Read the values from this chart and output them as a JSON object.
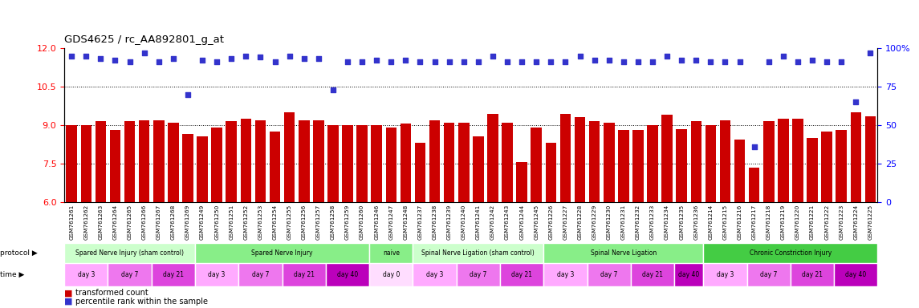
{
  "title": "GDS4625 / rc_AA892801_g_at",
  "ylim": [
    6,
    12
  ],
  "yticks": [
    6,
    7.5,
    9,
    10.5,
    12
  ],
  "right_ylim": [
    0,
    100
  ],
  "right_yticks": [
    0,
    25,
    50,
    75,
    100
  ],
  "bar_color": "#cc0000",
  "dot_color": "#3333cc",
  "gsm_labels": [
    "GSM761261",
    "GSM761262",
    "GSM761263",
    "GSM761264",
    "GSM761265",
    "GSM761266",
    "GSM761267",
    "GSM761268",
    "GSM761269",
    "GSM761249",
    "GSM761250",
    "GSM761251",
    "GSM761252",
    "GSM761253",
    "GSM761254",
    "GSM761255",
    "GSM761256",
    "GSM761257",
    "GSM761258",
    "GSM761259",
    "GSM761260",
    "GSM761246",
    "GSM761247",
    "GSM761248",
    "GSM761237",
    "GSM761238",
    "GSM761239",
    "GSM761240",
    "GSM761241",
    "GSM761242",
    "GSM761243",
    "GSM761244",
    "GSM761245",
    "GSM761226",
    "GSM761227",
    "GSM761228",
    "GSM761229",
    "GSM761230",
    "GSM761231",
    "GSM761232",
    "GSM761233",
    "GSM761234",
    "GSM761235",
    "GSM761236",
    "GSM761214",
    "GSM761215",
    "GSM761216",
    "GSM761217",
    "GSM761218",
    "GSM761219",
    "GSM761220",
    "GSM761221",
    "GSM761222",
    "GSM761223",
    "GSM761224",
    "GSM761225"
  ],
  "bar_values": [
    9.0,
    9.0,
    9.15,
    8.8,
    9.15,
    9.2,
    9.2,
    9.1,
    8.65,
    8.55,
    8.9,
    9.15,
    9.25,
    9.2,
    8.75,
    9.5,
    9.2,
    9.2,
    9.0,
    9.0,
    9.0,
    9.0,
    8.9,
    9.05,
    8.3,
    9.2,
    9.1,
    9.1,
    8.55,
    9.45,
    9.1,
    7.55,
    8.9,
    8.3,
    9.45,
    9.3,
    9.15,
    9.1,
    8.8,
    8.8,
    9.0,
    9.4,
    8.85,
    9.15,
    9.0,
    9.2,
    8.45,
    7.35,
    9.15,
    9.25,
    9.25,
    8.5,
    8.75,
    8.8,
    9.5,
    9.35
  ],
  "dot_values": [
    95,
    95,
    93,
    92,
    91,
    97,
    91,
    93,
    70,
    92,
    91,
    93,
    95,
    94,
    91,
    95,
    93,
    93,
    73,
    91,
    91,
    92,
    91,
    92,
    91,
    91,
    91,
    91,
    91,
    95,
    91,
    91,
    91,
    91,
    91,
    95,
    92,
    92,
    91,
    91,
    91,
    95,
    92,
    92,
    91,
    91,
    91,
    36,
    91,
    95,
    91,
    92,
    91,
    91,
    65,
    97
  ],
  "protocols": [
    {
      "label": "Spared Nerve Injury (sham control)",
      "start": 0,
      "end": 9,
      "color": "#ccffcc"
    },
    {
      "label": "Spared Nerve Injury",
      "start": 9,
      "end": 21,
      "color": "#88ee88"
    },
    {
      "label": "naive",
      "start": 21,
      "end": 24,
      "color": "#88ee88"
    },
    {
      "label": "Spinal Nerve Ligation (sham control)",
      "start": 24,
      "end": 33,
      "color": "#ccffcc"
    },
    {
      "label": "Spinal Nerve Ligation",
      "start": 33,
      "end": 44,
      "color": "#88ee88"
    },
    {
      "label": "Chronic Constriction Injury",
      "start": 44,
      "end": 56,
      "color": "#44cc44"
    }
  ],
  "times": [
    {
      "label": "day 3",
      "start": 0,
      "end": 3,
      "color": "#ffaaff"
    },
    {
      "label": "day 7",
      "start": 3,
      "end": 6,
      "color": "#ee77ee"
    },
    {
      "label": "day 21",
      "start": 6,
      "end": 9,
      "color": "#dd44dd"
    },
    {
      "label": "day 3",
      "start": 9,
      "end": 12,
      "color": "#ffaaff"
    },
    {
      "label": "day 7",
      "start": 12,
      "end": 15,
      "color": "#ee77ee"
    },
    {
      "label": "day 21",
      "start": 15,
      "end": 18,
      "color": "#dd44dd"
    },
    {
      "label": "day 40",
      "start": 18,
      "end": 21,
      "color": "#bb00bb"
    },
    {
      "label": "day 0",
      "start": 21,
      "end": 24,
      "color": "#ffddff"
    },
    {
      "label": "day 3",
      "start": 24,
      "end": 27,
      "color": "#ffaaff"
    },
    {
      "label": "day 7",
      "start": 27,
      "end": 30,
      "color": "#ee77ee"
    },
    {
      "label": "day 21",
      "start": 30,
      "end": 33,
      "color": "#dd44dd"
    },
    {
      "label": "day 3",
      "start": 33,
      "end": 36,
      "color": "#ffaaff"
    },
    {
      "label": "day 7",
      "start": 36,
      "end": 39,
      "color": "#ee77ee"
    },
    {
      "label": "day 21",
      "start": 39,
      "end": 42,
      "color": "#dd44dd"
    },
    {
      "label": "day 40",
      "start": 42,
      "end": 44,
      "color": "#bb00bb"
    },
    {
      "label": "day 3",
      "start": 44,
      "end": 47,
      "color": "#ffaaff"
    },
    {
      "label": "day 7",
      "start": 47,
      "end": 50,
      "color": "#ee77ee"
    },
    {
      "label": "day 21",
      "start": 50,
      "end": 53,
      "color": "#dd44dd"
    },
    {
      "label": "day 40",
      "start": 53,
      "end": 56,
      "color": "#bb00bb"
    }
  ],
  "legend_red": "transformed count",
  "legend_blue": "percentile rank within the sample"
}
